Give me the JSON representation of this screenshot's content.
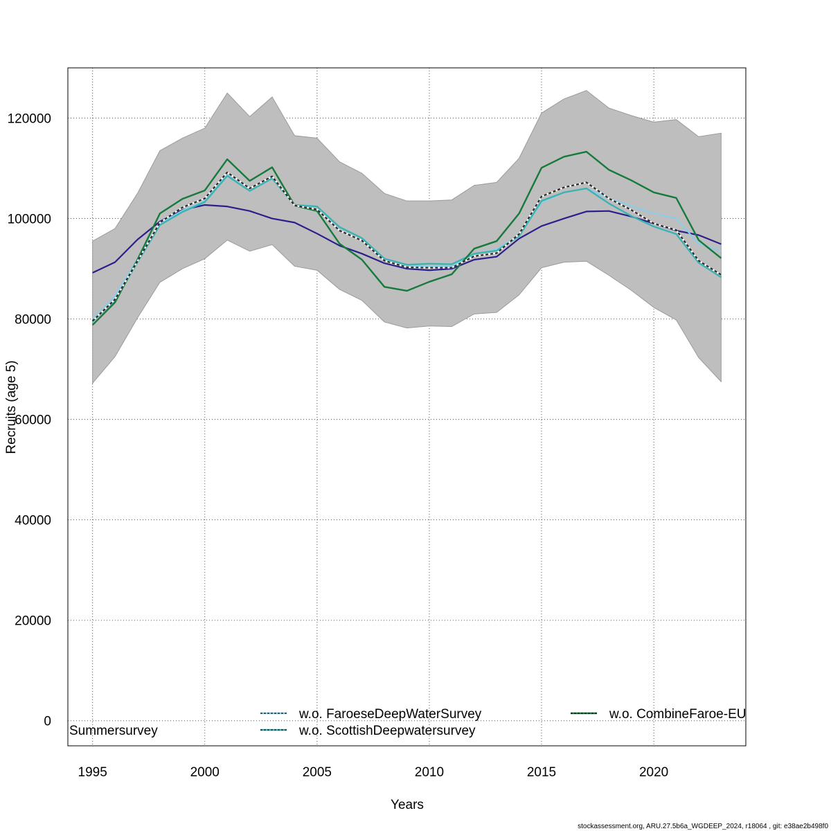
{
  "chart_data": {
    "type": "line",
    "xlabel": "Years",
    "ylabel": "Recruits (age 5)",
    "xlim": [
      1993.9,
      2024.1
    ],
    "ylim": [
      -5000,
      130000
    ],
    "x_ticks": [
      1995,
      2000,
      2005,
      2010,
      2015,
      2020
    ],
    "y_ticks": [
      0,
      20000,
      40000,
      60000,
      80000,
      100000,
      120000
    ],
    "grid": true,
    "x": [
      1995,
      1996,
      1997,
      1998,
      1999,
      2000,
      2001,
      2002,
      2003,
      2004,
      2005,
      2006,
      2007,
      2008,
      2009,
      2010,
      2011,
      2012,
      2013,
      2014,
      2015,
      2016,
      2017,
      2018,
      2019,
      2020,
      2021,
      2022,
      2023
    ],
    "ci_band": {
      "upper": [
        95500,
        98000,
        105000,
        113500,
        116000,
        118000,
        125000,
        120300,
        124200,
        116500,
        116000,
        111300,
        109000,
        105000,
        103500,
        103500,
        103700,
        106600,
        107200,
        112000,
        121000,
        123800,
        125500,
        122000,
        120500,
        119200,
        119700,
        116300,
        117000
      ],
      "lower": [
        67200,
        72500,
        80200,
        87300,
        90000,
        92000,
        95700,
        93500,
        94800,
        90500,
        89700,
        85900,
        83700,
        79400,
        78200,
        78600,
        78500,
        81000,
        81300,
        84800,
        90200,
        91300,
        91500,
        88700,
        85700,
        82300,
        79800,
        72300,
        67500
      ],
      "color": "#bebebe"
    },
    "series": [
      {
        "name": "",
        "color": "#2a1f8a",
        "width": 2.2,
        "dash": "",
        "values": [
          89200,
          91300,
          95800,
          99400,
          101700,
          102700,
          102400,
          101500,
          100000,
          99200,
          97000,
          94600,
          93000,
          91100,
          90000,
          89700,
          90000,
          91800,
          92400,
          96000,
          98500,
          100000,
          101400,
          101500,
          100400,
          99000,
          97600,
          96700,
          94900
        ]
      },
      {
        "name": "w.o. FaroeseDeepWaterSurvey",
        "color": "#87ceeb",
        "width": 2,
        "dash": "",
        "values": [
          80200,
          84500,
          92000,
          99000,
          101600,
          103500,
          108700,
          105500,
          108000,
          102600,
          102300,
          98200,
          96100,
          92000,
          90700,
          90400,
          90500,
          92900,
          93900,
          96700,
          103200,
          105200,
          106000,
          104000,
          102500,
          101000,
          100000,
          95000,
          93500
        ]
      },
      {
        "name": "w.o. ScottishDeepwatersurvey",
        "color": "#3cb3b3",
        "width": 2.4,
        "dash": "",
        "values": [
          79500,
          83700,
          91300,
          98700,
          101300,
          103300,
          108500,
          105500,
          108000,
          102700,
          102400,
          98300,
          96100,
          92000,
          90800,
          91000,
          90900,
          93000,
          93600,
          96500,
          103500,
          105200,
          106000,
          103000,
          100500,
          98400,
          96900,
          91200,
          88300
        ]
      },
      {
        "name": "w.o. CombineFaroe-EU",
        "color": "#157a3c",
        "width": 2.4,
        "dash": "",
        "values": [
          78800,
          83300,
          91800,
          101000,
          103900,
          105600,
          111800,
          107500,
          110200,
          102600,
          101500,
          95000,
          91800,
          86400,
          85600,
          87400,
          88900,
          94000,
          95500,
          101000,
          110100,
          112300,
          113300,
          109700,
          107600,
          105200,
          104100,
          95700,
          92100
        ]
      },
      {
        "name": "",
        "color": "#2b2b2b",
        "width": 2.2,
        "dash": "4,3",
        "values": [
          79600,
          83900,
          91500,
          99200,
          102200,
          104000,
          109200,
          106000,
          108400,
          102600,
          101800,
          97600,
          95600,
          91600,
          90300,
          90200,
          90200,
          92500,
          93100,
          96900,
          104400,
          106200,
          107200,
          104000,
          101700,
          99000,
          97700,
          91600,
          88800
        ]
      }
    ],
    "legend": [
      {
        "label": "Summersurvey",
        "color": "",
        "handle": false
      },
      {
        "label": "w.o. FaroeseDeepWaterSurvey",
        "color": "#87ceeb",
        "handle": true
      },
      {
        "label": "w.o. ScottishDeepwatersurvey",
        "color": "#3cb3b3",
        "handle": true
      },
      {
        "label": "w.o. CombineFaroe-EU",
        "color": "#157a3c",
        "handle": true
      }
    ],
    "legend_position": "bottom"
  },
  "footer": {
    "credit": "stockassessment.org, ARU.27.5b6a_WGDEEP_2024, r18064 , git: e38ae2b498f0"
  }
}
